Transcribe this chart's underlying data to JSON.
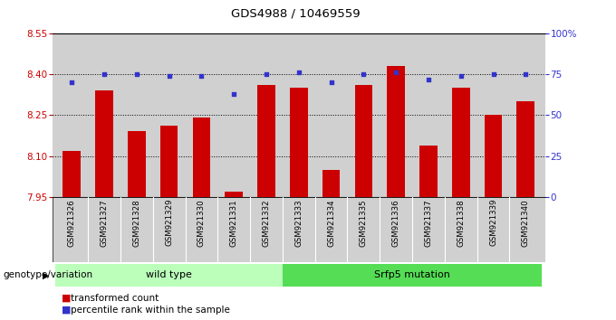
{
  "title": "GDS4988 / 10469559",
  "samples": [
    "GSM921326",
    "GSM921327",
    "GSM921328",
    "GSM921329",
    "GSM921330",
    "GSM921331",
    "GSM921332",
    "GSM921333",
    "GSM921334",
    "GSM921335",
    "GSM921336",
    "GSM921337",
    "GSM921338",
    "GSM921339",
    "GSM921340"
  ],
  "bar_values": [
    8.12,
    8.34,
    8.19,
    8.21,
    8.24,
    7.97,
    8.36,
    8.35,
    8.05,
    8.36,
    8.43,
    8.14,
    8.35,
    8.25,
    8.3
  ],
  "dot_values": [
    70,
    75,
    75,
    74,
    74,
    63,
    75,
    76,
    70,
    75,
    76,
    72,
    74,
    75,
    75
  ],
  "ylim_left": [
    7.95,
    8.55
  ],
  "ylim_right": [
    0,
    100
  ],
  "yticks_left": [
    7.95,
    8.1,
    8.25,
    8.4,
    8.55
  ],
  "yticks_right": [
    0,
    25,
    50,
    75,
    100
  ],
  "ytick_labels_right": [
    "0",
    "25",
    "50",
    "75",
    "100%"
  ],
  "bar_color": "#cc0000",
  "dot_color": "#3333cc",
  "group1_label": "wild type",
  "group2_label": "Srfp5 mutation",
  "group1_color": "#bbffbb",
  "group2_color": "#55dd55",
  "xlabel_label": "genotype/variation",
  "legend_bar": "transformed count",
  "legend_dot": "percentile rank within the sample",
  "axis_bg": "#d0d0d0",
  "bar_base": 7.95,
  "grid_lines": [
    8.1,
    8.25,
    8.4
  ]
}
